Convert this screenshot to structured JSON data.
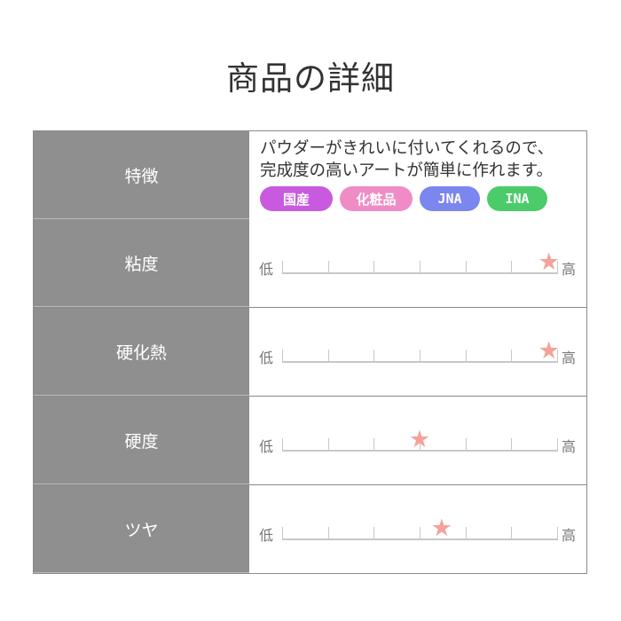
{
  "title": "商品の詳細",
  "features": {
    "label": "特徴",
    "description_lines": [
      "パウダーがきれいに付いてくれるので、",
      "完成度の高いアートが簡単に作れます。"
    ],
    "tags": [
      {
        "label": "国産",
        "color": "#c95ae0"
      },
      {
        "label": "化粧品",
        "color": "#ef8cc6"
      },
      {
        "label": "JNA",
        "color": "#7b86ee"
      },
      {
        "label": "INA",
        "color": "#4ccb6a"
      }
    ]
  },
  "scale_low": "低",
  "scale_high": "高",
  "star_color": "#f4a39a",
  "ratings": [
    {
      "label": "粘度",
      "level": 0.97
    },
    {
      "label": "硬化熱",
      "level": 0.97
    },
    {
      "label": "硬度",
      "level": 0.5
    },
    {
      "label": "ツヤ",
      "level": 0.58
    }
  ]
}
